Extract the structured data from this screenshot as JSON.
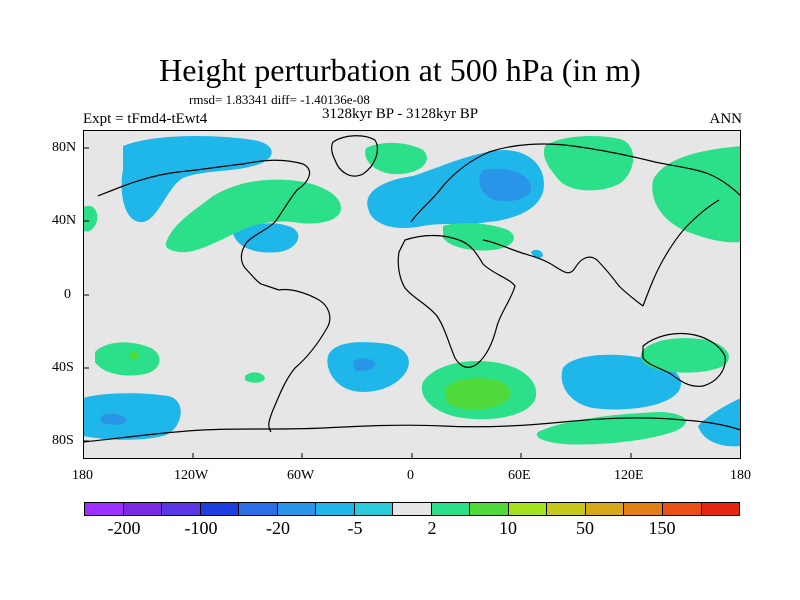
{
  "title": "Height perturbation at 500 hPa (in m)",
  "stats_line": "rmsd= 1.83341 diff= -1.40136e-08",
  "period_line": "3128kyr BP - 3128kyr BP",
  "expt_label": "Expt = tFmd4-tEwt4",
  "season_label": "ANN",
  "lat_ticks": [
    "80N",
    "40N",
    "0",
    "40S",
    "80S"
  ],
  "lon_ticks": [
    "180",
    "120W",
    "60W",
    "0",
    "60E",
    "120E",
    "180"
  ],
  "colorbar": {
    "colors": [
      "#9b30ff",
      "#7a2be2",
      "#5a36e6",
      "#1e3fe0",
      "#2a6ee8",
      "#2a94e8",
      "#1fb6ea",
      "#29ccd8",
      "#e6e6e6",
      "#2be089",
      "#50d93a",
      "#a6e31f",
      "#c8c81a",
      "#d7a818",
      "#e07e18",
      "#e85018",
      "#e22410"
    ],
    "labels": [
      "-200",
      "-100",
      "-20",
      "-5",
      "2",
      "10",
      "50",
      "150"
    ]
  },
  "map_colors": {
    "ocean": "#e6e6e6",
    "light_green": "#2be089",
    "green": "#50d93a",
    "light_blue": "#1fb6ea",
    "blue": "#2a94e8"
  }
}
